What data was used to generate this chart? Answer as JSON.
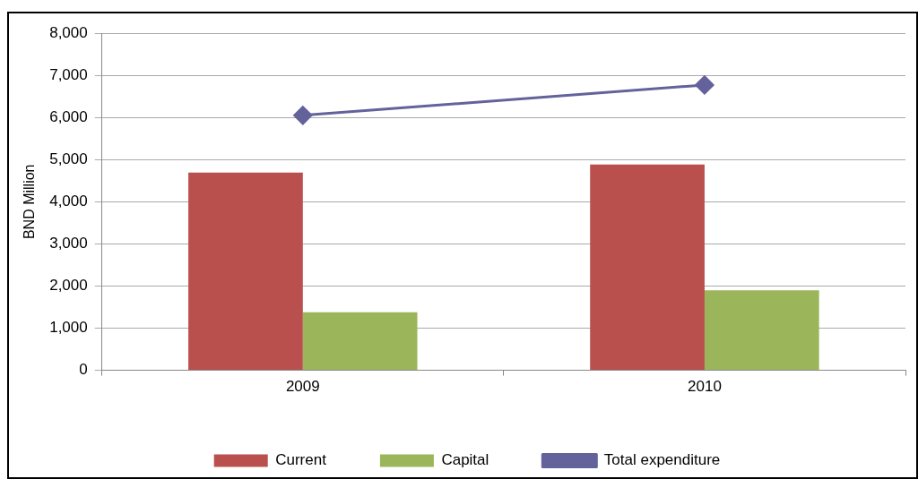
{
  "chart_data": {
    "type": "bar",
    "categories": [
      "2009",
      "2010"
    ],
    "ylabel": "BND Million",
    "series": [
      {
        "name": "Current",
        "color": "#b9504d",
        "values": [
          4690,
          4880
        ]
      },
      {
        "name": "Capital",
        "color": "#9bb65a",
        "values": [
          1380,
          1900
        ]
      },
      {
        "name": "Total expenditure",
        "type": "line",
        "color": "#64629b",
        "values": [
          6050,
          6770
        ],
        "marker": "diamond"
      }
    ],
    "ylim": [
      0,
      8000
    ],
    "yticks": [
      0,
      {
        "value": 1000,
        "label": "1,000"
      },
      {
        "value": 2000,
        "label": "2,000"
      },
      {
        "value": 3000,
        "label": "3,000"
      },
      {
        "value": 4000,
        "label": "4,000"
      },
      {
        "value": 5000,
        "label": "5,000"
      },
      {
        "value": 6000,
        "label": "6,000"
      },
      {
        "value": 7000,
        "label": "7,000"
      },
      {
        "value": 8000,
        "label": "8,000"
      }
    ],
    "grid": "y",
    "legend": "bottom"
  }
}
